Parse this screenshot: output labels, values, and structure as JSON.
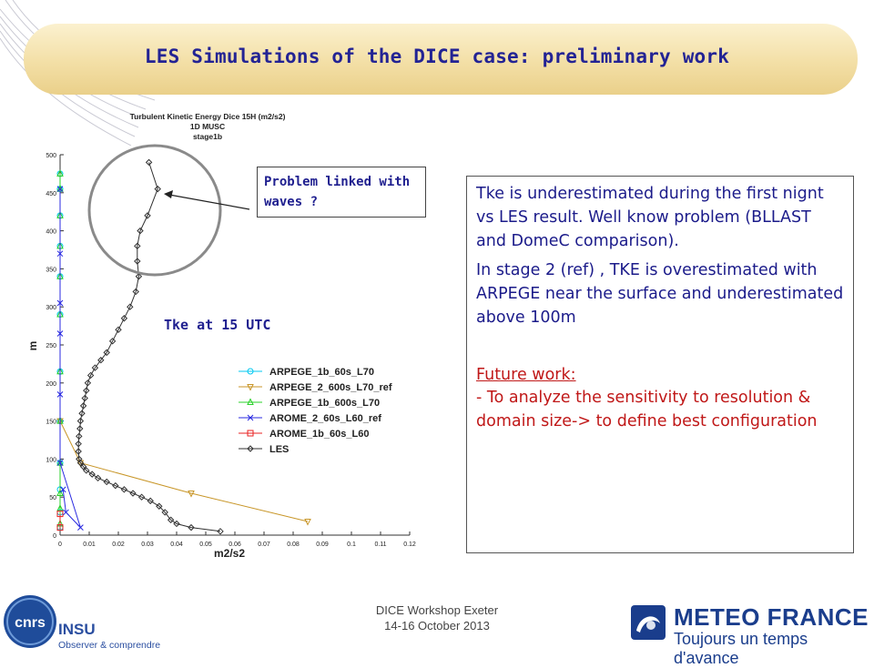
{
  "slide": {
    "title": "LES Simulations of the DICE case: preliminary work",
    "callout": "Problem linked with waves ?",
    "tke_label": "Tke at 15 UTC",
    "paragraph1": "Tke is underestimated during the first nignt vs LES result. Well know problem (BLLAST and DomeC comparison).",
    "paragraph2": "In stage 2 (ref) , TKE is overestimated with ARPEGE near the surface and underestimated above 100m",
    "future_heading": "Future work:",
    "future_body": "- To analyze the sensitivity to resolution & domain size-> to define best configuration",
    "footer_line1": "DICE Workshop Exeter",
    "footer_line2": "14-16 October 2013",
    "cnrs_text": "cnrs",
    "insu_text": "INSU",
    "insu_sub": "Observer & comprendre",
    "mf_name": "METEO FRANCE",
    "mf_tagline": "Toujours un temps d'avance"
  },
  "colors": {
    "title": "#232394",
    "body_text": "#1b1b8a",
    "future_text": "#c01818"
  },
  "chart_data": {
    "type": "line",
    "title": "Turbulent Kinetic Energy Dice 15H (m2/s2)",
    "subtitle": "1D MUSC",
    "subtitle2": "stage1b",
    "xlabel": "m2/s2",
    "ylabel": "m",
    "xlim": [
      0,
      0.12
    ],
    "ylim": [
      0,
      500
    ],
    "xticks": [
      "0",
      "0.01",
      "0.02",
      "0.03",
      "0.04",
      "0.05",
      "0.06",
      "0.07",
      "0.08",
      "0.09",
      "0.1",
      "0.11",
      "0.12"
    ],
    "yticks": [
      "0",
      "50",
      "100",
      "150",
      "200",
      "250",
      "300",
      "350",
      "400",
      "450",
      "500"
    ],
    "legend_position": "right",
    "series": [
      {
        "name": "ARPEGE_1b_60s_L70",
        "color": "#00c8f0",
        "marker": "circle",
        "x": [
          0.0,
          0.0,
          0.0,
          0.0,
          0.0,
          0.0,
          0.0,
          0.0,
          0.0,
          0.0,
          0.0,
          0.0
        ],
        "y": [
          10,
          30,
          60,
          95,
          150,
          215,
          290,
          340,
          380,
          420,
          455,
          475
        ]
      },
      {
        "name": "ARPEGE_2_600s_L70_ref",
        "color": "#c89628",
        "marker": "triangle-down",
        "x": [
          0.0,
          0.007,
          0.045,
          0.085
        ],
        "y": [
          150,
          95,
          55,
          18
        ]
      },
      {
        "name": "ARPEGE_1b_600s_L70",
        "color": "#28d028",
        "marker": "triangle",
        "x": [
          0.0,
          0.0,
          0.0,
          0.0,
          0.0,
          0.0,
          0.0,
          0.0,
          0.0,
          0.0,
          0.0,
          0.0
        ],
        "y": [
          15,
          35,
          55,
          95,
          150,
          215,
          290,
          340,
          380,
          420,
          455,
          475
        ]
      },
      {
        "name": "AROME_2_60s_L60_ref",
        "color": "#2828e0",
        "marker": "x",
        "x": [
          0.001,
          0.002,
          0.007,
          0.0,
          0.0,
          0.0,
          0.0,
          0.0,
          0.0
        ],
        "y": [
          60,
          30,
          10,
          95,
          185,
          265,
          305,
          370,
          455
        ]
      },
      {
        "name": "AROME_1b_60s_L60",
        "color": "#e82020",
        "marker": "square",
        "x": [
          0.0,
          0.0
        ],
        "y": [
          10,
          28
        ]
      },
      {
        "name": "LES",
        "color": "#303030",
        "marker": "diamond",
        "x": [
          0.055,
          0.045,
          0.04,
          0.038,
          0.036,
          0.034,
          0.031,
          0.028,
          0.025,
          0.022,
          0.019,
          0.016,
          0.013,
          0.011,
          0.009,
          0.008,
          0.007,
          0.0065,
          0.0063,
          0.0063,
          0.0065,
          0.0068,
          0.007,
          0.0075,
          0.008,
          0.0085,
          0.009,
          0.0095,
          0.0105,
          0.012,
          0.014,
          0.016,
          0.018,
          0.02,
          0.022,
          0.024,
          0.026,
          0.027,
          0.0265,
          0.0265,
          0.0275,
          0.03,
          0.0335,
          0.0305
        ],
        "y": [
          5,
          10,
          15,
          20,
          30,
          38,
          45,
          50,
          55,
          60,
          65,
          70,
          75,
          80,
          85,
          90,
          95,
          100,
          110,
          120,
          130,
          140,
          150,
          160,
          170,
          180,
          190,
          200,
          210,
          220,
          230,
          240,
          255,
          270,
          285,
          300,
          320,
          340,
          360,
          380,
          400,
          420,
          455,
          490
        ]
      }
    ]
  }
}
